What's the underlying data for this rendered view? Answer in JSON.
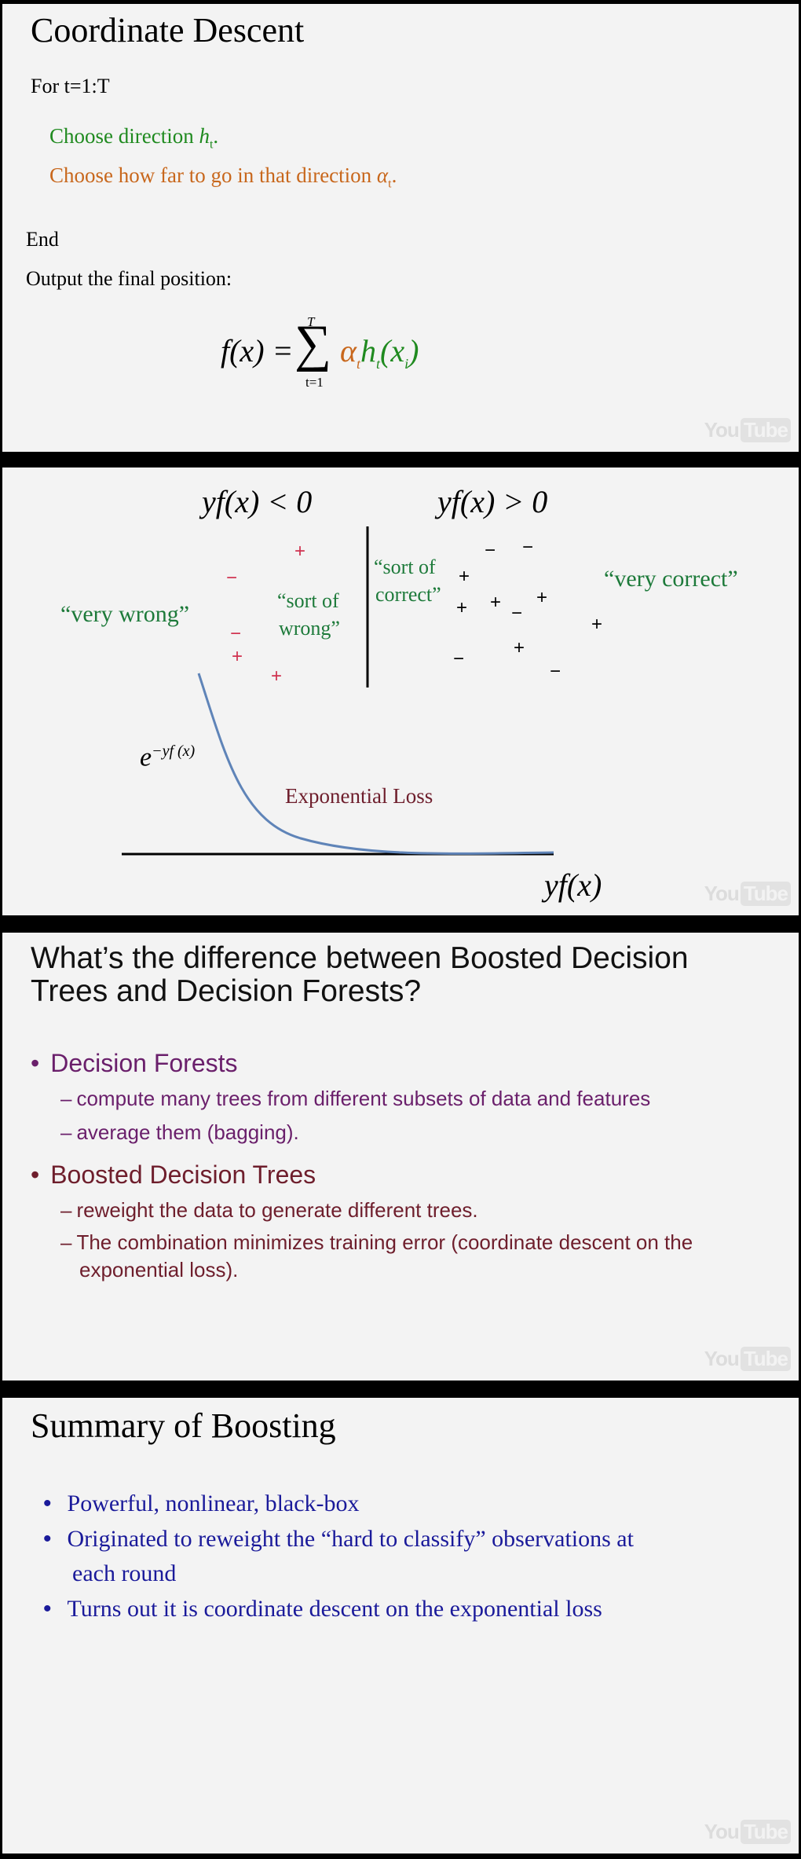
{
  "watermark": {
    "you": "You",
    "tube": "Tube"
  },
  "slide1": {
    "title": "Coordinate Descent",
    "for_line": "For t=1:T",
    "step1_text": "Choose direction ",
    "step1_var": "h",
    "step1_sub": "t",
    "step1_end": ".",
    "step2_text": "Choose how far to go in that direction ",
    "step2_var": "α",
    "step2_sub": "t",
    "step2_end": ".",
    "end_line": "End",
    "output_line": "Output the final position:",
    "formula": {
      "lhs": "f(x) =",
      "sum": "∑",
      "upper": "T",
      "lower": "t=1",
      "alpha": "α",
      "alpha_sub": "t",
      "h": "h",
      "h_sub": "t",
      "arg_open": "(x",
      "arg_sub": "i",
      "arg_close": ")"
    }
  },
  "slide2": {
    "label_neg": "yf(x) < 0",
    "label_pos": "yf(x) > 0",
    "very_wrong": "“very wrong”",
    "sort_of_wrong_1": "“sort of",
    "sort_of_wrong_2": "wrong”",
    "sort_of_correct_1": "“sort of",
    "sort_of_correct_2": "correct”",
    "very_correct": "“very correct”",
    "exp_base": "e",
    "exp_power": "−yf (x)",
    "loss_label": "Exponential Loss",
    "x_axis_label": "yf(x)",
    "markers_left": [
      "+",
      "−",
      "−",
      "+",
      "+"
    ],
    "markers_right": [
      "−",
      "−",
      "+",
      "+",
      "−",
      "+",
      "+",
      "+",
      "−",
      "+",
      "−"
    ],
    "colors": {
      "markers_left": "#d0314f",
      "markers_right": "#000000",
      "curve": "#5f84b8",
      "labels": "#1d7a3a",
      "loss": "#6e1e2c"
    }
  },
  "slide3": {
    "title_line1": "What’s the difference between Boosted Decision",
    "title_line2": "Trees and Decision Forests?",
    "items": [
      {
        "heading": "Decision Forests",
        "subs": [
          "compute many trees from different subsets of data and features",
          "average them (bagging)."
        ]
      },
      {
        "heading": "Boosted Decision Trees",
        "subs": [
          "reweight the data to generate different trees.",
          "The combination minimizes training error (coordinate descent on the",
          "exponential loss)."
        ]
      }
    ]
  },
  "slide4": {
    "title": "Summary of Boosting",
    "bullets": [
      "Powerful, nonlinear, black-box",
      "Originated to reweight the “hard to classify” observations at",
      "each round",
      "Turns out it is coordinate descent on the exponential loss"
    ]
  }
}
